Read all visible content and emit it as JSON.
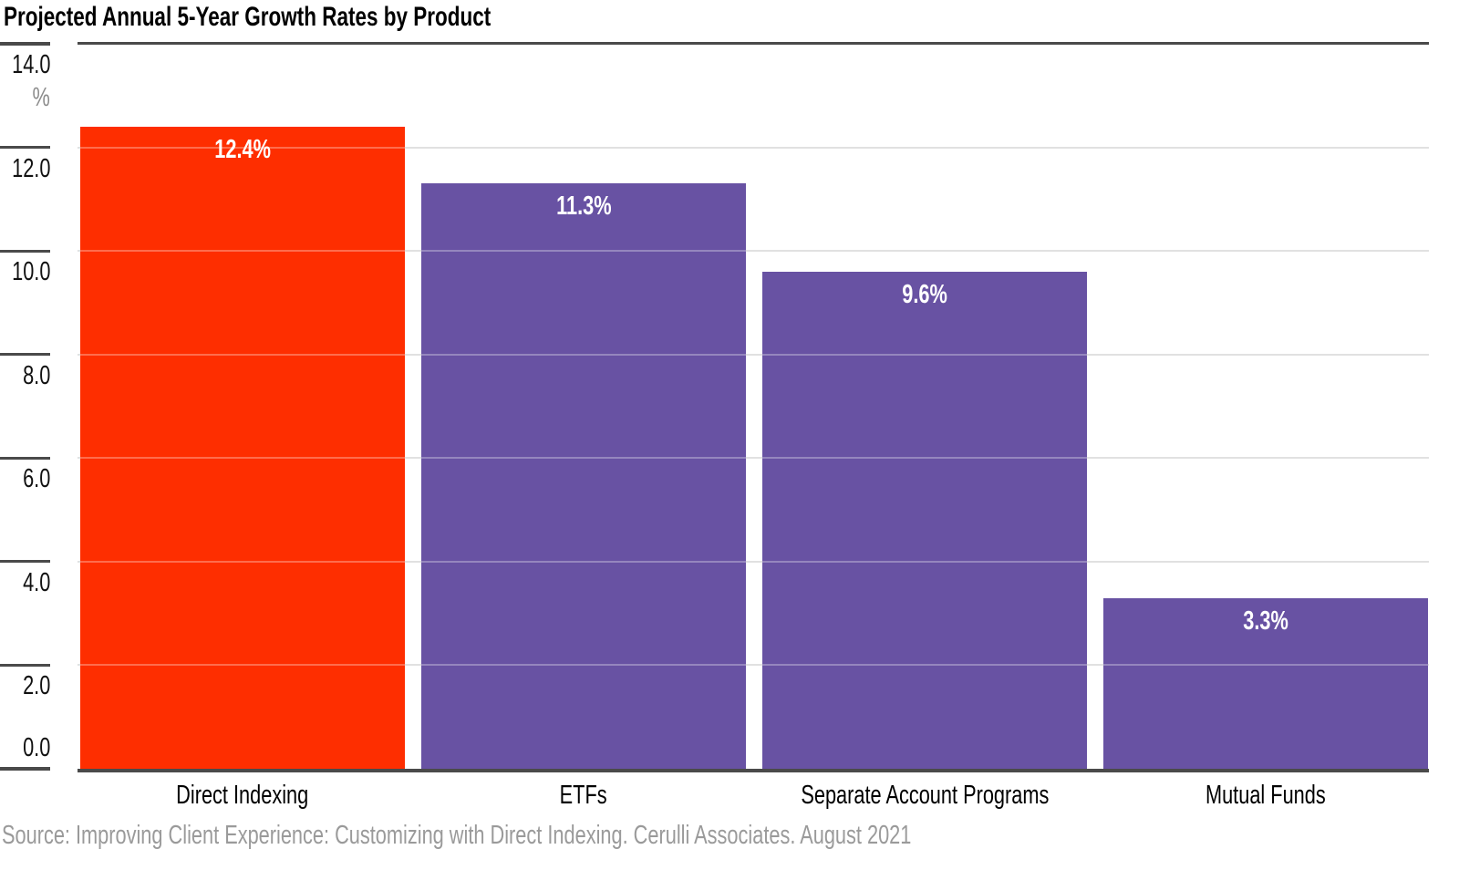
{
  "chart_data": {
    "type": "bar",
    "title": "Projected Annual 5-Year Growth Rates by Product",
    "categories": [
      "Direct Indexing",
      "ETFs",
      "Separate Account Programs",
      "Mutual Funds"
    ],
    "values": [
      12.4,
      11.3,
      9.6,
      3.3
    ],
    "data_labels": [
      "12.4%",
      "11.3%",
      "9.6%",
      "3.3%"
    ],
    "unit_label": "%",
    "y_ticks": [
      14.0,
      12.0,
      10.0,
      8.0,
      6.0,
      4.0,
      2.0,
      0.0
    ],
    "y_tick_labels": [
      "14.0",
      "12.0",
      "10.0",
      "8.0",
      "6.0",
      "4.0",
      "2.0",
      "0.0"
    ],
    "ylim": [
      0,
      14
    ],
    "ytick_interval": 2,
    "grid": true,
    "legend": "none",
    "xlabel": "",
    "ylabel": "%",
    "bar_colors": [
      "#FE2E00",
      "#6852A3",
      "#6852A3",
      "#6852A3"
    ],
    "highlight_color": "#FE2E00",
    "series_color": "#6852A3",
    "value_label_color": "#FFFFFF",
    "source": "Source: Improving Client Experience: Customizing with Direct Indexing. Cerulli Associates. August 2021"
  },
  "style_colors": {
    "dark_line": "#4A4A4A",
    "light_gridline": "#D4D4D4",
    "gridline_overlay": "rgba(255,255,255,0.3)",
    "axis_text": "#111111",
    "unit_text": "#8C8C8C",
    "source_text": "#9A9A9A",
    "background": "#FFFFFF"
  }
}
